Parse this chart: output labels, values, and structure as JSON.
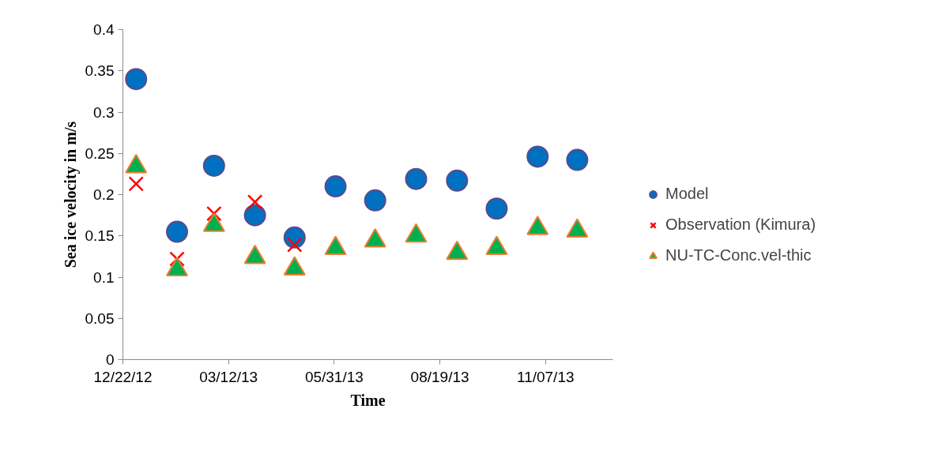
{
  "chart_data": {
    "type": "scatter",
    "xlabel": "Time",
    "ylabel": "Sea ice velocity in m/s",
    "x": [
      "2013-01-01",
      "2013-02-01",
      "2013-03-01",
      "2013-04-01",
      "2013-05-01",
      "2013-06-01",
      "2013-07-01",
      "2013-08-01",
      "2013-09-01",
      "2013-10-01",
      "2013-11-01",
      "2013-12-01"
    ],
    "series": [
      {
        "name": "Model",
        "color": "#0070c0",
        "marker": "circle",
        "values": [
          0.34,
          0.155,
          0.235,
          0.175,
          0.148,
          0.21,
          0.193,
          0.219,
          0.217,
          0.183,
          0.246,
          0.242
        ]
      },
      {
        "name": "Observation (Kimura)",
        "color": "#ff0000",
        "marker": "cross",
        "values": [
          0.213,
          0.122,
          0.177,
          0.191,
          0.139,
          null,
          null,
          null,
          null,
          null,
          null,
          null
        ]
      },
      {
        "name": "NU-TC-Conc.vel-thic",
        "color": "#00b050",
        "marker": "triangle",
        "values": [
          0.234,
          0.109,
          0.163,
          0.124,
          0.11,
          0.135,
          0.144,
          0.15,
          0.129,
          0.135,
          0.159,
          0.156
        ]
      }
    ],
    "xlim": [
      "2012-12-22",
      "2013-12-28"
    ],
    "xticks": [
      {
        "value": "2012-12-22",
        "label": "12/22/12"
      },
      {
        "value": "2013-03-12",
        "label": "03/12/13"
      },
      {
        "value": "2013-05-31",
        "label": "05/31/13"
      },
      {
        "value": "2013-08-19",
        "label": "08/19/13"
      },
      {
        "value": "2013-11-07",
        "label": "11/07/13"
      }
    ],
    "ylim": [
      0,
      0.4
    ],
    "yticks": [
      0,
      0.05,
      0.1,
      0.15,
      0.2,
      0.25,
      0.3,
      0.35,
      0.4
    ],
    "grid": false,
    "legend": "right"
  }
}
